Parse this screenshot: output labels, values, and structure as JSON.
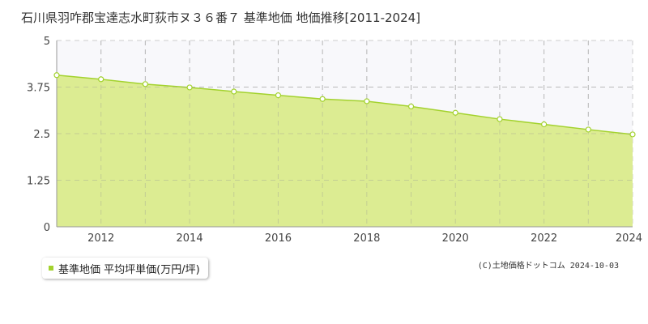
{
  "chart_data": {
    "type": "area",
    "title": "石川県羽咋郡宝達志水町荻市ヌ３６番７ 基準地価 地価推移[2011-2024]",
    "x": [
      2011,
      2012,
      2013,
      2014,
      2015,
      2016,
      2017,
      2018,
      2019,
      2020,
      2021,
      2022,
      2023,
      2024
    ],
    "series": [
      {
        "name": "基準地価 平均坪単価(万円/坪)",
        "color": "#a3d22e",
        "fill": "#dcec92",
        "values": [
          4.07,
          3.96,
          3.83,
          3.74,
          3.63,
          3.53,
          3.43,
          3.37,
          3.23,
          3.06,
          2.89,
          2.75,
          2.61,
          2.48
        ]
      }
    ],
    "xlim": [
      2011,
      2024
    ],
    "ylim": [
      0,
      5
    ],
    "xticks": [
      "2012",
      "2014",
      "2016",
      "2018",
      "2020",
      "2022",
      "2024"
    ],
    "yticks": [
      "0",
      "1.25",
      "2.5",
      "3.75",
      "5"
    ],
    "grid": true,
    "legend_position": "bottom-left"
  },
  "copyright": "(C)土地価格ドットコム 2024-10-03"
}
